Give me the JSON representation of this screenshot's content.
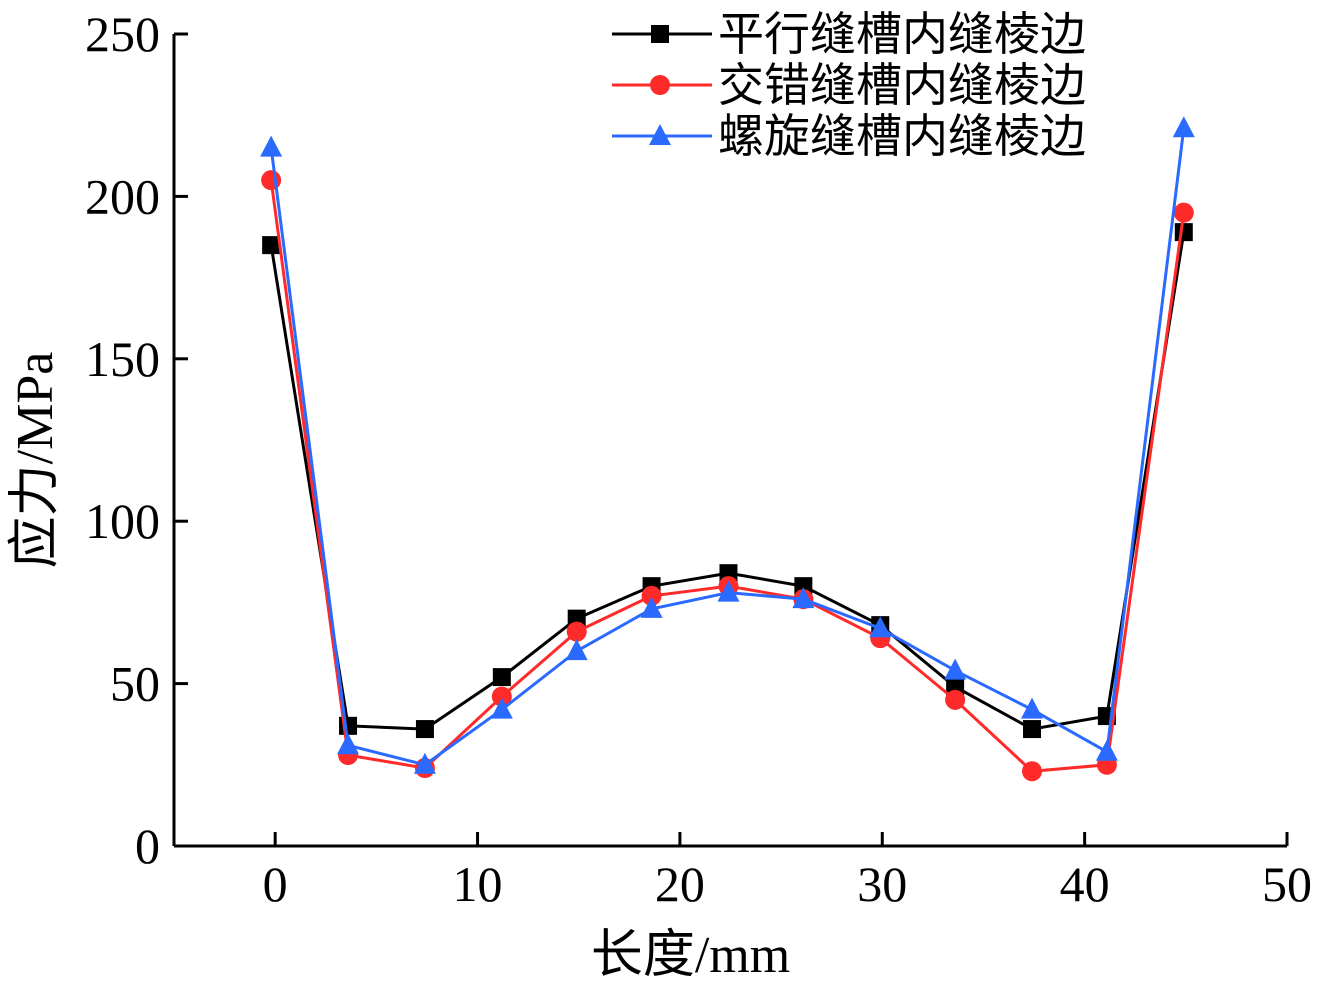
{
  "chart_data": {
    "type": "line",
    "title": "",
    "xlabel": "长度/mm",
    "ylabel": "应力/MPa",
    "xlim": [
      -5,
      50
    ],
    "ylim": [
      0,
      250
    ],
    "xticks": [
      0,
      10,
      20,
      30,
      40,
      50
    ],
    "yticks": [
      0,
      50,
      100,
      150,
      200,
      250
    ],
    "grid": false,
    "legend_position": "top-right",
    "series": [
      {
        "name": "平行缝槽内缝棱边",
        "color": "#000000",
        "marker": "square",
        "x": [
          -0.2,
          3.6,
          7.4,
          11.2,
          14.9,
          18.6,
          22.4,
          26.1,
          29.9,
          33.6,
          37.4,
          41.1,
          44.9
        ],
        "y": [
          185,
          37,
          36,
          52,
          70,
          80,
          84,
          80,
          68,
          49,
          36,
          40,
          189
        ]
      },
      {
        "name": "交错缝槽内缝棱边",
        "color": "#ff2a2a",
        "marker": "circle",
        "x": [
          -0.2,
          3.6,
          7.4,
          11.2,
          14.9,
          18.6,
          22.4,
          26.1,
          29.9,
          33.6,
          37.4,
          41.1,
          44.9
        ],
        "y": [
          205,
          28,
          24,
          46,
          66,
          77,
          80,
          76,
          64,
          45,
          23,
          25,
          195
        ]
      },
      {
        "name": "螺旋缝槽内缝棱边",
        "color": "#2a6aff",
        "marker": "triangle",
        "x": [
          -0.2,
          3.6,
          7.4,
          11.2,
          14.9,
          18.6,
          22.4,
          26.1,
          29.9,
          33.6,
          37.4,
          41.1,
          44.9
        ],
        "y": [
          215,
          31,
          25,
          42,
          60,
          73,
          78,
          76,
          67,
          54,
          42,
          29,
          221
        ]
      }
    ]
  }
}
